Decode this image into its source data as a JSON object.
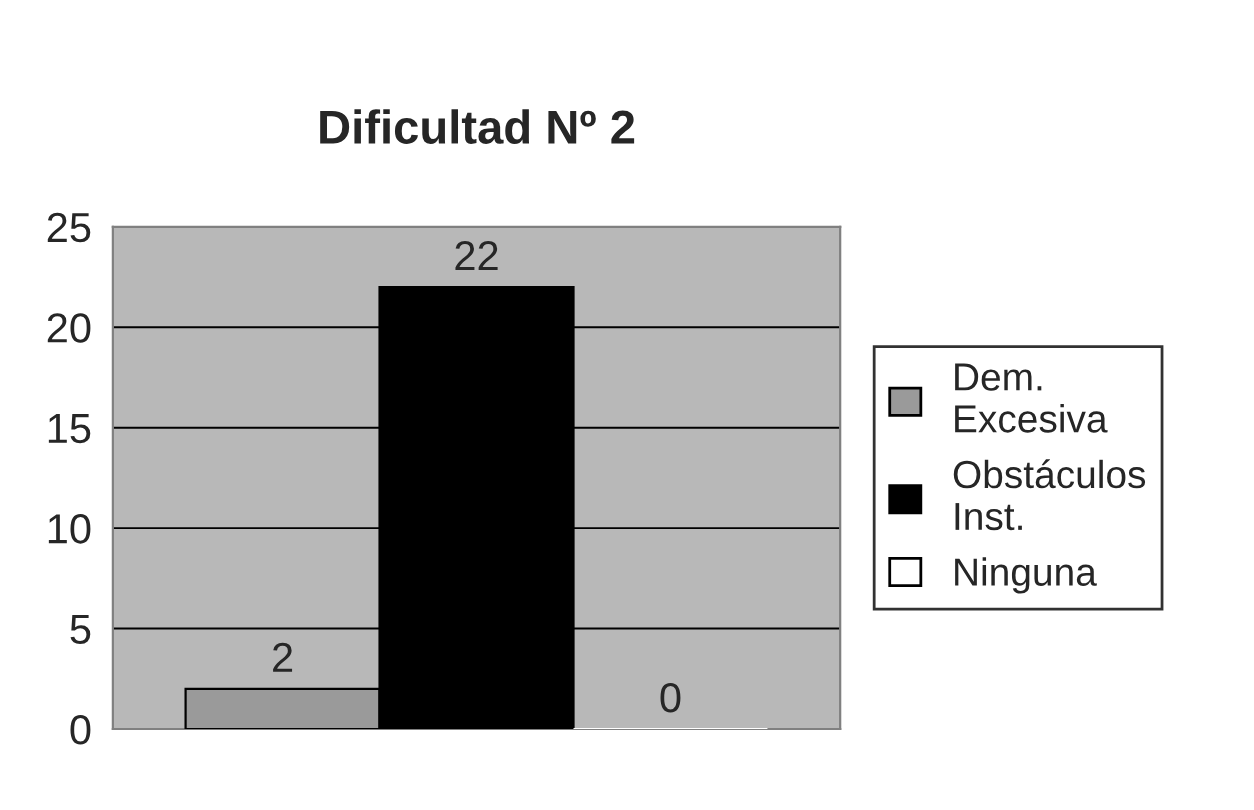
{
  "chart_data": {
    "type": "bar",
    "title": "Dificultad Nº 2",
    "categories": [
      null
    ],
    "series": [
      {
        "name": "Dem. Excesiva",
        "color": "#9a9a9a",
        "values": [
          2
        ]
      },
      {
        "name": "Obstáculos Inst.",
        "color": "#000000",
        "values": [
          22
        ]
      },
      {
        "name": "Ninguna",
        "color": "#ffffff",
        "values": [
          0
        ]
      }
    ],
    "ylim": [
      0,
      25
    ],
    "yticks": [
      0,
      5,
      10,
      15,
      20,
      25
    ],
    "grid": "y",
    "legend": "right",
    "data_labels": true
  }
}
